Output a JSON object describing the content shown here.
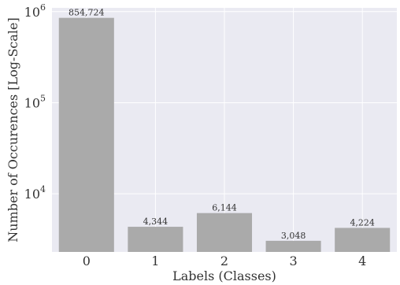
{
  "chart_data": {
    "type": "bar",
    "categories": [
      "0",
      "1",
      "2",
      "3",
      "4"
    ],
    "values": [
      854724,
      4344,
      6144,
      3048,
      4224
    ],
    "data_labels": [
      "854,724",
      "4,344",
      "6,144",
      "3,048",
      "4,224"
    ],
    "xlabel": "Labels (Classes)",
    "ylabel": "Number of Occurences [Log-Scale]",
    "yscale": "log",
    "ylim": [
      2300,
      1100000
    ],
    "yticks": [
      {
        "value": 10000,
        "base": "10",
        "exp": "4"
      },
      {
        "value": 100000,
        "base": "10",
        "exp": "5"
      },
      {
        "value": 1000000,
        "base": "10",
        "exp": "6"
      }
    ],
    "grid": true,
    "colors": {
      "bar": "#aaaaaa",
      "plot_background": "#eaeaf2",
      "grid": "#ffffff"
    }
  }
}
